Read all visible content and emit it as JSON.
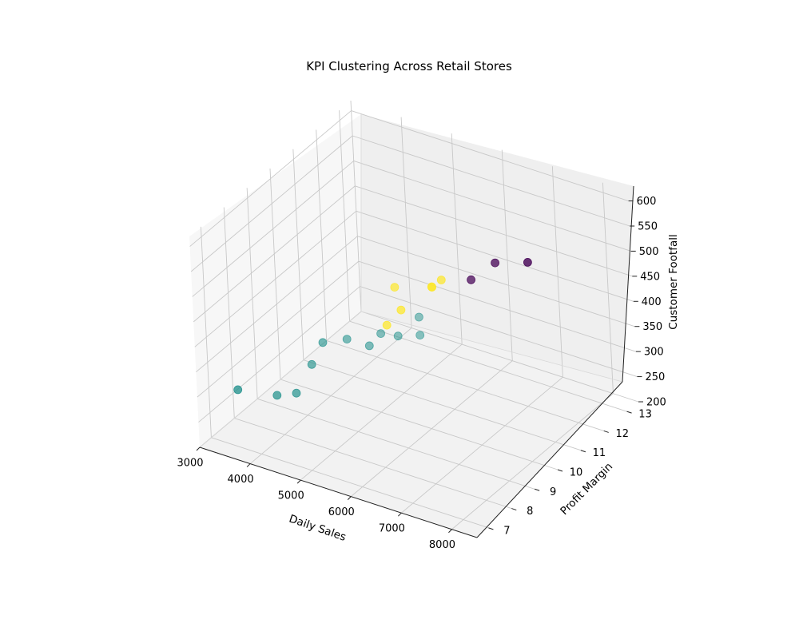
{
  "chart_data": {
    "type": "scatter",
    "projection": "3d",
    "title": "KPI Clustering Across Retail Stores",
    "xlabel": "Daily Sales",
    "ylabel": "Profit Margin",
    "zlabel": "Customer Footfall",
    "xlim": [
      3000,
      8500
    ],
    "ylim": [
      6.5,
      13.5
    ],
    "zlim": [
      200,
      620
    ],
    "xticks": [
      "3000",
      "4000",
      "5000",
      "6000",
      "7000",
      "8000"
    ],
    "yticks": [
      "7",
      "8",
      "9",
      "10",
      "11",
      "12",
      "13"
    ],
    "zticks": [
      "200",
      "250",
      "300",
      "350",
      "400",
      "450",
      "500",
      "550",
      "600"
    ],
    "grid": true,
    "colormap": "viridis",
    "cluster_colors": {
      "0": "#440154",
      "1": "#21918c",
      "2": "#fde725"
    },
    "points": [
      {
        "x": 3100,
        "y": 8.0,
        "z": 260,
        "cluster": 1
      },
      {
        "x": 3400,
        "y": 9.0,
        "z": 220,
        "cluster": 1
      },
      {
        "x": 3550,
        "y": 9.5,
        "z": 210,
        "cluster": 1
      },
      {
        "x": 3550,
        "y": 10.2,
        "z": 240,
        "cluster": 1
      },
      {
        "x": 3600,
        "y": 10.6,
        "z": 270,
        "cluster": 1
      },
      {
        "x": 3800,
        "y": 11.2,
        "z": 260,
        "cluster": 1
      },
      {
        "x": 4100,
        "y": 11.5,
        "z": 245,
        "cluster": 1
      },
      {
        "x": 4100,
        "y": 12.0,
        "z": 250,
        "cluster": 1
      },
      {
        "x": 4300,
        "y": 12.3,
        "z": 240,
        "cluster": 1
      },
      {
        "x": 4600,
        "y": 12.6,
        "z": 240,
        "cluster": 1
      },
      {
        "x": 4500,
        "y": 12.8,
        "z": 265,
        "cluster": 1
      },
      {
        "x": 5200,
        "y": 10.0,
        "z": 380,
        "cluster": 2
      },
      {
        "x": 5200,
        "y": 10.4,
        "z": 440,
        "cluster": 2
      },
      {
        "x": 5500,
        "y": 10.0,
        "z": 420,
        "cluster": 2
      },
      {
        "x": 5900,
        "y": 10.5,
        "z": 460,
        "cluster": 2
      },
      {
        "x": 6000,
        "y": 10.3,
        "z": 470,
        "cluster": 2
      },
      {
        "x": 6100,
        "y": 10.5,
        "z": 480,
        "cluster": 2
      },
      {
        "x": 6700,
        "y": 10.5,
        "z": 500,
        "cluster": 0
      },
      {
        "x": 7200,
        "y": 10.5,
        "z": 550,
        "cluster": 0
      },
      {
        "x": 8100,
        "y": 10.0,
        "z": 600,
        "cluster": 0
      }
    ]
  }
}
